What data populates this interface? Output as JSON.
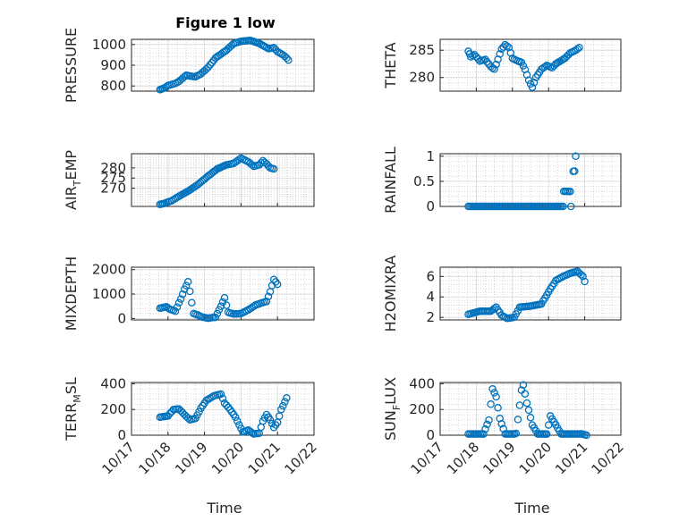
{
  "figure": {
    "title": "Figure 1 low",
    "xlabel": "Time",
    "xticks": [
      "10/17",
      "10/18",
      "10/19",
      "10/20",
      "10/21",
      "10/22"
    ]
  },
  "chart_data": [
    {
      "id": "pressure",
      "type": "scatter",
      "ylabel": "PRESSURE",
      "title": "Figure 1 low",
      "ylim": [
        775,
        1025
      ],
      "yticks": [
        800,
        900,
        1000
      ],
      "grid": true,
      "x_range": [
        "10/17",
        "10/22"
      ],
      "keypoints": [
        [
          0.78,
          782
        ],
        [
          0.9,
          790
        ],
        [
          1.0,
          802
        ],
        [
          1.2,
          812
        ],
        [
          1.3,
          822
        ],
        [
          1.5,
          852
        ],
        [
          1.6,
          848
        ],
        [
          1.75,
          844
        ],
        [
          1.9,
          858
        ],
        [
          2.1,
          890
        ],
        [
          2.3,
          935
        ],
        [
          2.6,
          972
        ],
        [
          2.8,
          1005
        ],
        [
          3.0,
          1015
        ],
        [
          3.25,
          1020
        ],
        [
          3.5,
          1005
        ],
        [
          3.6,
          995
        ],
        [
          3.75,
          980
        ],
        [
          3.9,
          985
        ],
        [
          4.0,
          965
        ],
        [
          4.15,
          950
        ],
        [
          4.25,
          935
        ],
        [
          4.3,
          925
        ]
      ]
    },
    {
      "id": "theta",
      "type": "scatter",
      "ylabel": "THETA",
      "ylim": [
        277.5,
        287
      ],
      "yticks": [
        280,
        285
      ],
      "grid": true,
      "x_range": [
        "10/17",
        "10/22"
      ],
      "keypoints": [
        [
          0.78,
          284.8
        ],
        [
          0.85,
          283.8
        ],
        [
          0.95,
          284.2
        ],
        [
          1.1,
          283.0
        ],
        [
          1.25,
          283.3
        ],
        [
          1.4,
          282.0
        ],
        [
          1.5,
          281.5
        ],
        [
          1.7,
          285.2
        ],
        [
          1.8,
          286.0
        ],
        [
          1.9,
          285.5
        ],
        [
          2.0,
          283.5
        ],
        [
          2.15,
          283.0
        ],
        [
          2.25,
          282.8
        ],
        [
          2.35,
          281.5
        ],
        [
          2.45,
          279.5
        ],
        [
          2.55,
          278.2
        ],
        [
          2.65,
          280.0
        ],
        [
          2.8,
          281.5
        ],
        [
          2.95,
          282.2
        ],
        [
          3.1,
          281.8
        ],
        [
          3.2,
          282.5
        ],
        [
          3.45,
          283.5
        ],
        [
          3.6,
          284.5
        ],
        [
          3.75,
          285.0
        ],
        [
          3.85,
          285.5
        ]
      ]
    },
    {
      "id": "air_temp",
      "type": "scatter",
      "ylabel": "AIR",
      "ylabel_sub": "T",
      "ylabel_suffix": "EMP",
      "ylim": [
        261,
        287
      ],
      "yticks": [
        270,
        275,
        280
      ],
      "grid": true,
      "x_range": [
        "10/17",
        "10/22"
      ],
      "keypoints": [
        [
          0.78,
          262.0
        ],
        [
          0.9,
          262.5
        ],
        [
          1.1,
          263.8
        ],
        [
          1.3,
          266.0
        ],
        [
          1.55,
          268.5
        ],
        [
          1.8,
          271.5
        ],
        [
          2.1,
          276.0
        ],
        [
          2.35,
          279.5
        ],
        [
          2.6,
          281.5
        ],
        [
          2.8,
          282.2
        ],
        [
          3.0,
          284.8
        ],
        [
          3.2,
          283.0
        ],
        [
          3.35,
          280.8
        ],
        [
          3.5,
          281.5
        ],
        [
          3.6,
          283.5
        ],
        [
          3.7,
          282.0
        ],
        [
          3.8,
          280.0
        ],
        [
          3.9,
          279.5
        ]
      ]
    },
    {
      "id": "rainfall",
      "type": "scatter",
      "ylabel": "RAINFALL",
      "ylim": [
        0,
        1.05
      ],
      "yticks": [
        0,
        0.5,
        1
      ],
      "grid": true,
      "x_range": [
        "10/17",
        "10/22"
      ],
      "keypoints": [
        [
          0.78,
          0
        ],
        [
          3.4,
          0
        ],
        [
          3.42,
          0.3
        ],
        [
          3.6,
          0.3
        ],
        [
          3.62,
          0.0
        ],
        [
          3.68,
          0.7
        ],
        [
          3.72,
          0.7
        ],
        [
          3.75,
          1.0
        ]
      ]
    },
    {
      "id": "mixdepth",
      "type": "scatter",
      "ylabel": "MIXDEPTH",
      "ylim": [
        -60,
        2100
      ],
      "yticks": [
        0,
        1000,
        2000
      ],
      "grid": true,
      "x_range": [
        "10/17",
        "10/22"
      ],
      "keypoints": [
        [
          0.78,
          420
        ],
        [
          0.95,
          480
        ],
        [
          1.05,
          380
        ],
        [
          1.2,
          300
        ],
        [
          1.35,
          800
        ],
        [
          1.45,
          1200
        ],
        [
          1.55,
          1500
        ],
        [
          1.6,
          1100
        ],
        [
          1.7,
          200
        ],
        [
          1.8,
          150
        ],
        [
          1.95,
          50
        ],
        [
          2.1,
          10
        ],
        [
          2.3,
          50
        ],
        [
          2.45,
          500
        ],
        [
          2.55,
          850
        ],
        [
          2.65,
          250
        ],
        [
          2.8,
          180
        ],
        [
          3.0,
          200
        ],
        [
          3.2,
          350
        ],
        [
          3.4,
          550
        ],
        [
          3.6,
          650
        ],
        [
          3.7,
          700
        ],
        [
          3.8,
          1100
        ],
        [
          3.9,
          1600
        ],
        [
          4.0,
          1400
        ]
      ]
    },
    {
      "id": "h2omixra",
      "type": "scatter",
      "ylabel": "H2OMIXRA",
      "ylim": [
        1.75,
        6.9
      ],
      "yticks": [
        2,
        4,
        6
      ],
      "grid": true,
      "x_range": [
        "10/17",
        "10/22"
      ],
      "keypoints": [
        [
          0.78,
          2.3
        ],
        [
          1.1,
          2.6
        ],
        [
          1.4,
          2.6
        ],
        [
          1.55,
          3.0
        ],
        [
          1.7,
          2.2
        ],
        [
          1.85,
          1.9
        ],
        [
          2.05,
          2.0
        ],
        [
          2.2,
          3.0
        ],
        [
          2.5,
          3.1
        ],
        [
          2.8,
          3.3
        ],
        [
          3.0,
          4.5
        ],
        [
          3.2,
          5.6
        ],
        [
          3.4,
          6.0
        ],
        [
          3.6,
          6.3
        ],
        [
          3.8,
          6.5
        ],
        [
          3.95,
          6.0
        ],
        [
          4.0,
          5.5
        ]
      ]
    },
    {
      "id": "terr_msl",
      "type": "scatter",
      "ylabel": "TERR",
      "ylabel_sub": "M",
      "ylabel_suffix": "SL",
      "ylim": [
        0,
        410
      ],
      "yticks": [
        0,
        200,
        400
      ],
      "grid": true,
      "x_range": [
        "10/17",
        "10/22"
      ],
      "keypoints": [
        [
          0.78,
          140
        ],
        [
          1.0,
          150
        ],
        [
          1.15,
          200
        ],
        [
          1.3,
          205
        ],
        [
          1.45,
          160
        ],
        [
          1.6,
          120
        ],
        [
          1.75,
          130
        ],
        [
          1.9,
          210
        ],
        [
          2.05,
          270
        ],
        [
          2.25,
          305
        ],
        [
          2.45,
          320
        ],
        [
          2.55,
          250
        ],
        [
          2.7,
          200
        ],
        [
          2.85,
          140
        ],
        [
          2.95,
          80
        ],
        [
          3.05,
          25
        ],
        [
          3.2,
          40
        ],
        [
          3.35,
          10
        ],
        [
          3.5,
          15
        ],
        [
          3.6,
          110
        ],
        [
          3.7,
          160
        ],
        [
          3.8,
          120
        ],
        [
          3.9,
          60
        ],
        [
          4.0,
          100
        ],
        [
          4.1,
          200
        ],
        [
          4.25,
          290
        ]
      ]
    },
    {
      "id": "sun_flux",
      "type": "scatter",
      "ylabel": "SUN",
      "ylabel_sub": "F",
      "ylabel_suffix": "LUX",
      "ylim": [
        0,
        410
      ],
      "yticks": [
        0,
        200,
        400
      ],
      "grid": true,
      "x_range": [
        "10/17",
        "10/22"
      ],
      "keypoints": [
        [
          0.78,
          10
        ],
        [
          1.2,
          10
        ],
        [
          1.35,
          120
        ],
        [
          1.45,
          360
        ],
        [
          1.55,
          300
        ],
        [
          1.65,
          130
        ],
        [
          1.8,
          10
        ],
        [
          2.1,
          10
        ],
        [
          2.25,
          350
        ],
        [
          2.3,
          390
        ],
        [
          2.4,
          250
        ],
        [
          2.55,
          80
        ],
        [
          2.7,
          10
        ],
        [
          2.95,
          10
        ],
        [
          3.05,
          150
        ],
        [
          3.2,
          80
        ],
        [
          3.35,
          10
        ],
        [
          3.9,
          10
        ],
        [
          4.05,
          0
        ]
      ]
    }
  ]
}
